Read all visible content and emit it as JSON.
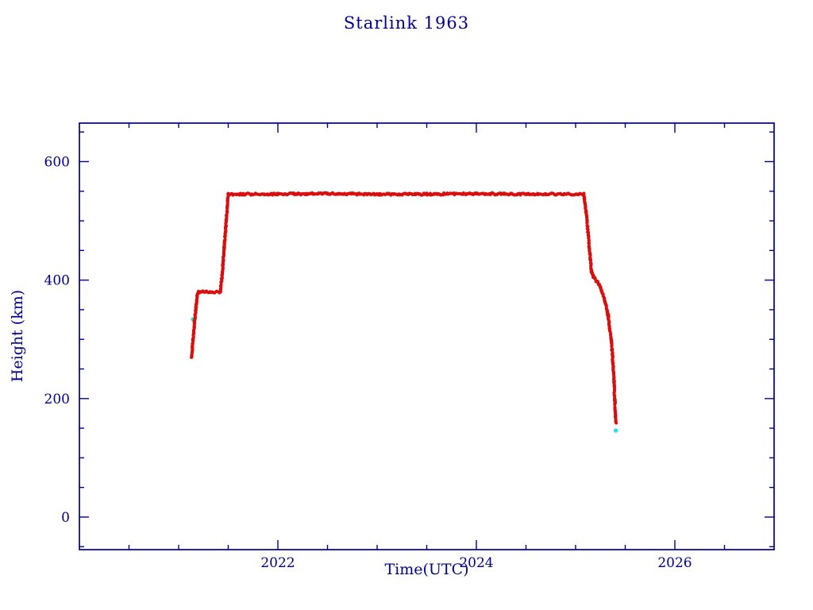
{
  "title": "Starlink 1963",
  "colors": {
    "axis": "#00008b",
    "title": "#00008b",
    "background": "#ffffff",
    "series_main": "#d90f0e",
    "series_under": "#1ce6ea"
  },
  "chart_data": {
    "type": "scatter",
    "title": "Starlink 1963",
    "xlabel": "Time(UTC)",
    "ylabel": "Height (km)",
    "xlim": [
      2020.0,
      2027.0
    ],
    "ylim": [
      -55,
      665
    ],
    "xticks": [
      2022,
      2024,
      2026
    ],
    "yticks": [
      0,
      200,
      400,
      600
    ],
    "x_minor_tick_step": 0.5,
    "y_minor_tick_step": 50,
    "grid": false,
    "legend": "none",
    "series": [
      {
        "name": "height-observed-red",
        "type": "dense-points",
        "color": "#d90f0e",
        "keypoints": [
          [
            2021.13,
            268
          ],
          [
            2021.16,
            330
          ],
          [
            2021.19,
            377
          ],
          [
            2021.2,
            380
          ],
          [
            2021.42,
            380
          ],
          [
            2021.44,
            412
          ],
          [
            2021.5,
            545
          ],
          [
            2022.0,
            545
          ],
          [
            2022.5,
            546
          ],
          [
            2023.0,
            545
          ],
          [
            2023.5,
            545
          ],
          [
            2024.0,
            546
          ],
          [
            2024.5,
            545
          ],
          [
            2025.08,
            545
          ],
          [
            2025.11,
            508
          ],
          [
            2025.14,
            450
          ],
          [
            2025.16,
            415
          ],
          [
            2025.18,
            405
          ],
          [
            2025.24,
            392
          ],
          [
            2025.29,
            368
          ],
          [
            2025.33,
            338
          ],
          [
            2025.36,
            298
          ],
          [
            2025.38,
            252
          ],
          [
            2025.395,
            196
          ],
          [
            2025.405,
            160
          ]
        ]
      },
      {
        "name": "height-underlay-cyan",
        "type": "points",
        "color": "#1ce6ea",
        "points": [
          [
            2021.145,
            334
          ],
          [
            2021.46,
            455
          ],
          [
            2025.39,
            228
          ],
          [
            2025.397,
            196
          ],
          [
            2025.405,
            146
          ]
        ]
      }
    ]
  }
}
